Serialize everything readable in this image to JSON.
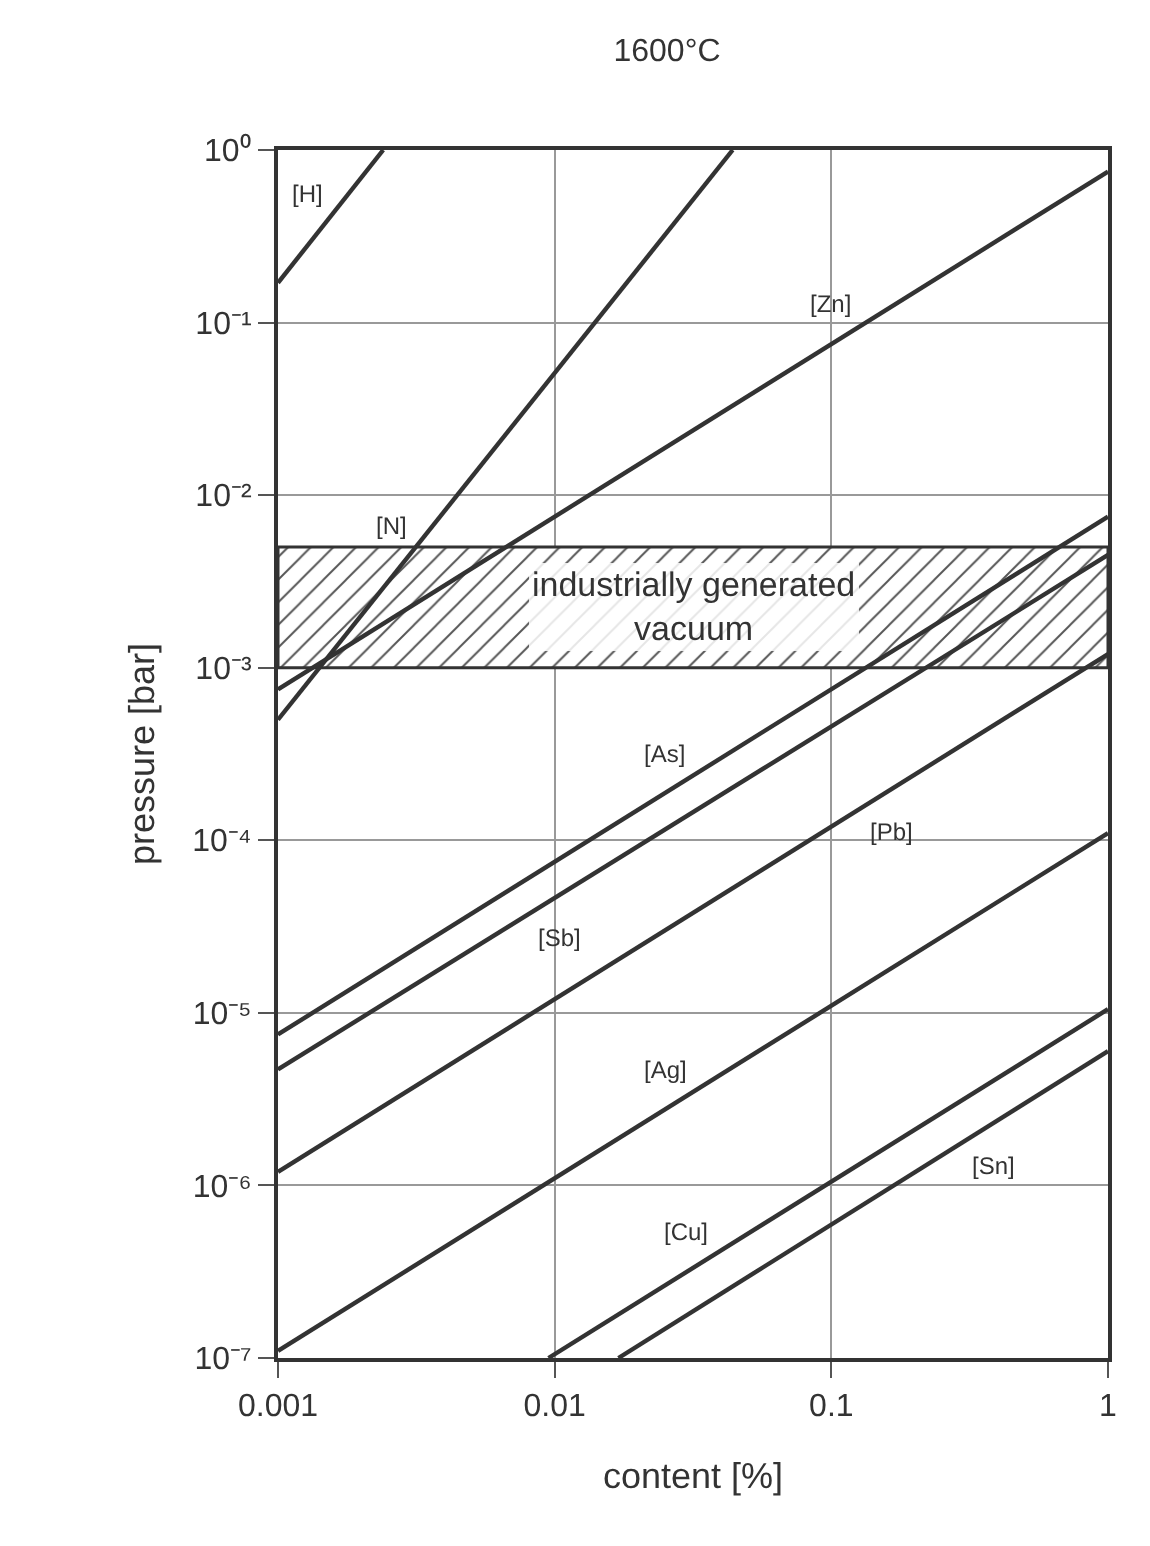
{
  "chart_data": {
    "type": "line",
    "title": "1600°C",
    "xlabel": "content [%]",
    "ylabel": "pressure [bar]",
    "log": "xy",
    "grid": true,
    "legend": false,
    "marker": "none",
    "line_style": "solid",
    "xlim": [
      0.001,
      1
    ],
    "xticks": [
      0.001,
      0.01,
      0.1,
      1
    ],
    "ylim": [
      1e-07,
      1
    ],
    "yticks": [
      {
        "value": 1,
        "label": "10⁰"
      },
      {
        "value": 0.1,
        "label": "10⁻¹"
      },
      {
        "value": 0.01,
        "label": "10⁻²"
      },
      {
        "value": 0.001,
        "label": "10⁻³"
      },
      {
        "value": 0.0001,
        "label": "10⁻⁴"
      },
      {
        "value": 1e-05,
        "label": "10⁻⁵"
      },
      {
        "value": 1e-06,
        "label": "10⁻⁶"
      },
      {
        "value": 1e-07,
        "label": "10⁻⁷"
      }
    ],
    "bands": [
      {
        "axis": "y",
        "from": 0.001,
        "to": 0.005,
        "label": "industrially generated vacuum"
      }
    ],
    "series": [
      {
        "name": "[H]",
        "color": "#333333",
        "x": [
          0.001,
          0.0024
        ],
        "values": [
          0.17,
          1
        ]
      },
      {
        "name": "[N]",
        "color": "#333333",
        "x": [
          0.001,
          0.044
        ],
        "values": [
          0.0005,
          1
        ]
      },
      {
        "name": "[Zn]",
        "color": "#333333",
        "x": [
          0.001,
          1
        ],
        "values": [
          0.00075,
          0.75
        ]
      },
      {
        "name": "[As]",
        "color": "#333333",
        "x": [
          0.001,
          1
        ],
        "values": [
          7.5e-06,
          0.0075
        ]
      },
      {
        "name": "[Sb]",
        "color": "#333333",
        "x": [
          0.001,
          1
        ],
        "values": [
          4.7e-06,
          0.0045
        ]
      },
      {
        "name": "[Pb]",
        "color": "#333333",
        "x": [
          0.001,
          1
        ],
        "values": [
          1.2e-06,
          0.0012
        ]
      },
      {
        "name": "[Ag]",
        "color": "#333333",
        "x": [
          0.001,
          1
        ],
        "values": [
          1.1e-07,
          0.00011
        ]
      },
      {
        "name": "[Cu]",
        "color": "#333333",
        "x": [
          0.0095,
          1
        ],
        "values": [
          1e-07,
          1.05e-05
        ]
      },
      {
        "name": "[Sn]",
        "color": "#333333",
        "x": [
          0.017,
          1
        ],
        "values": [
          1e-07,
          6e-06
        ]
      }
    ]
  }
}
